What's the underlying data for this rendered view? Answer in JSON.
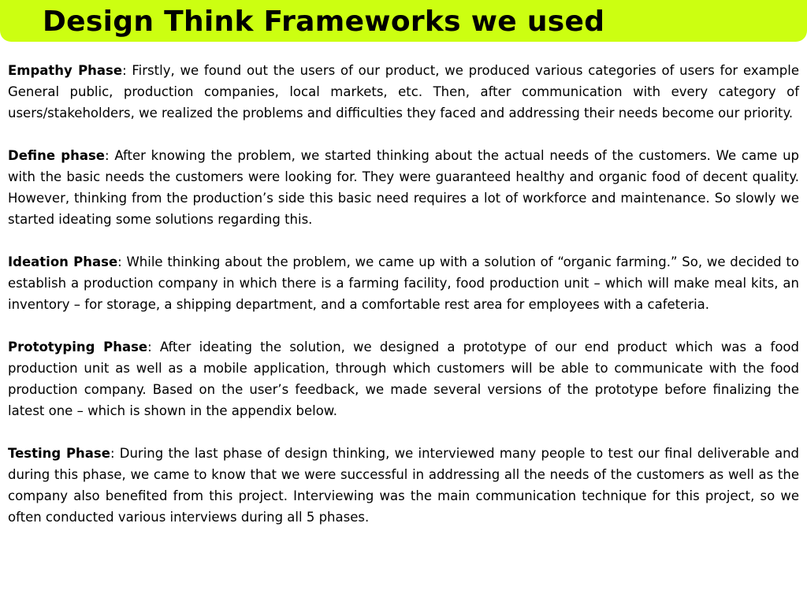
{
  "title": "Design Think Frameworks we used",
  "accent_color": "#ccff11",
  "paragraphs": [
    {
      "label": "Empathy Phase",
      "text": ": Firstly, we found out the users of our product, we produced various categories of users for example General public, production companies, local markets, etc. Then, after communication with every category of users/stakeholders, we realized the problems and difficulties they faced and addressing their needs become our priority."
    },
    {
      "label": "Define phase",
      "text": ": After knowing the problem, we started thinking about the actual needs of the customers. We came up with the basic needs the customers were looking for. They were guaranteed healthy and organic food of decent quality. However, thinking from the production’s side this basic need requires a lot of workforce and maintenance. So slowly we started ideating some solutions regarding this."
    },
    {
      "label": "Ideation Phase",
      "text": ": While thinking about the problem, we came up with a solution of “organic farming.” So, we decided to establish a production company in which there is a farming facility, food production unit – which will make meal kits, an inventory – for storage, a shipping department, and a comfortable rest area for employees with a cafeteria."
    },
    {
      "label": "Prototyping Phase",
      "text": ": After ideating the solution, we designed a prototype of our end product which was a food production unit as well as a mobile application, through which customers will be able to communicate with the food production company. Based on the user’s feedback, we made several versions of the prototype before finalizing the latest one – which is shown in the appendix below."
    },
    {
      "label": "Testing Phase",
      "text": ": During the last phase of design thinking, we interviewed many people to test our final deliverable and during this phase, we came to know that we were successful in addressing all the needs of the customers as well as the company also benefited from this project. Interviewing was the main communication technique for this project, so we often conducted various interviews during all 5 phases."
    }
  ]
}
